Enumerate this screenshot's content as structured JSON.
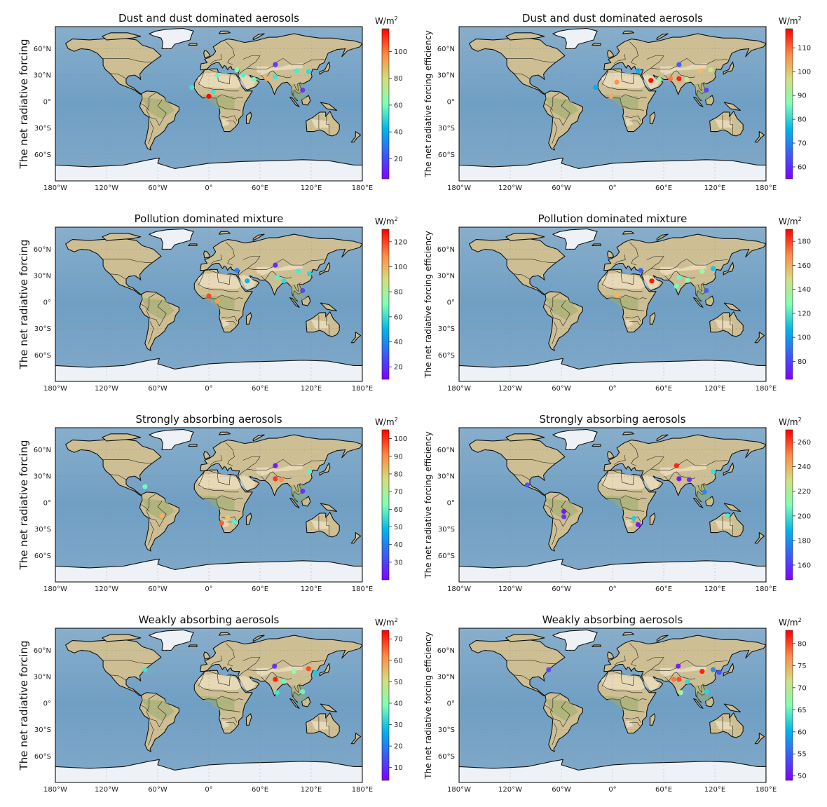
{
  "figure": {
    "longitude_ticks": [
      "180°W",
      "120°W",
      "60°W",
      "0°",
      "60°E",
      "120°E",
      "180°E"
    ],
    "latitude_ticks": [
      "60°N",
      "30°N",
      "0°",
      "30°S",
      "60°S"
    ],
    "colorbar_unit": "W/m",
    "colorbar_unit_superscript": "2",
    "colormap": "rainbow",
    "colors": {
      "ocean": "#7aa6c7",
      "land": "#cdbf93",
      "ice": "#eef2f7",
      "coast": "#111111",
      "desert": "#efe0c2"
    }
  },
  "panels": [
    {
      "title": "Dust and dust dominated aerosols",
      "ylabel": "The net radiative forcing",
      "colorbar_ticks": [
        20,
        40,
        60,
        80,
        100
      ],
      "vmin": 5,
      "vmax": 117,
      "points": [
        {
          "lon": 78,
          "lat": 42,
          "v": 12
        },
        {
          "lon": 33,
          "lat": 36,
          "v": 62
        },
        {
          "lon": 40,
          "lat": 30,
          "v": 50
        },
        {
          "lon": 68,
          "lat": 26,
          "v": 90
        },
        {
          "lon": 78,
          "lat": 28,
          "v": 45
        },
        {
          "lon": 103,
          "lat": 35,
          "v": 48
        },
        {
          "lon": 117,
          "lat": 34,
          "v": 42
        },
        {
          "lon": 110,
          "lat": 13,
          "v": 12
        },
        {
          "lon": 5,
          "lat": 11,
          "v": 45
        },
        {
          "lon": 0,
          "lat": 6,
          "v": 117
        },
        {
          "lon": -20,
          "lat": 16,
          "v": 45
        },
        {
          "lon": 10,
          "lat": 30,
          "v": 55
        },
        {
          "lon": 53,
          "lat": 25,
          "v": 60
        }
      ]
    },
    {
      "title": "Dust and dust dominated aerosols",
      "ylabel": "The net radiative forcing efficiency",
      "colorbar_ticks": [
        60,
        70,
        80,
        90,
        100,
        110
      ],
      "vmin": 55,
      "vmax": 118,
      "points": [
        {
          "lon": 78,
          "lat": 42,
          "v": 62
        },
        {
          "lon": 30,
          "lat": 35,
          "v": 70
        },
        {
          "lon": 45,
          "lat": 24,
          "v": 118
        },
        {
          "lon": 68,
          "lat": 26,
          "v": 108
        },
        {
          "lon": 78,
          "lat": 26,
          "v": 116
        },
        {
          "lon": 103,
          "lat": 35,
          "v": 102
        },
        {
          "lon": 115,
          "lat": 36,
          "v": 95
        },
        {
          "lon": 110,
          "lat": 13,
          "v": 60
        },
        {
          "lon": 5,
          "lat": 22,
          "v": 106
        },
        {
          "lon": -2,
          "lat": 6,
          "v": 104
        },
        {
          "lon": -20,
          "lat": 16,
          "v": 70
        },
        {
          "lon": 55,
          "lat": 25,
          "v": 90
        },
        {
          "lon": 87,
          "lat": 25,
          "v": 95
        }
      ]
    },
    {
      "title": "Pollution dominated mixture",
      "ylabel": "The net radiative forcing",
      "colorbar_ticks": [
        20,
        40,
        60,
        80,
        100,
        120
      ],
      "vmin": 10,
      "vmax": 130,
      "points": [
        {
          "lon": 78,
          "lat": 42,
          "v": 15
        },
        {
          "lon": 33,
          "lat": 36,
          "v": 30
        },
        {
          "lon": 80,
          "lat": 28,
          "v": 60
        },
        {
          "lon": 88,
          "lat": 24,
          "v": 50
        },
        {
          "lon": 105,
          "lat": 35,
          "v": 55
        },
        {
          "lon": 118,
          "lat": 32,
          "v": 48
        },
        {
          "lon": 110,
          "lat": 13,
          "v": 20
        },
        {
          "lon": 0,
          "lat": 7,
          "v": 120
        },
        {
          "lon": 10,
          "lat": 1,
          "v": 105
        },
        {
          "lon": 45,
          "lat": 24,
          "v": 40
        }
      ]
    },
    {
      "title": "Pollution dominated mixture",
      "ylabel": "The net radiative forcing efficiency",
      "colorbar_ticks": [
        80,
        100,
        120,
        140,
        160,
        180
      ],
      "vmin": 65,
      "vmax": 190,
      "points": [
        {
          "lon": 33,
          "lat": 36,
          "v": 80
        },
        {
          "lon": 46,
          "lat": 24,
          "v": 188
        },
        {
          "lon": 78,
          "lat": 28,
          "v": 120
        },
        {
          "lon": 88,
          "lat": 25,
          "v": 130
        },
        {
          "lon": 105,
          "lat": 35,
          "v": 135
        },
        {
          "lon": 118,
          "lat": 38,
          "v": 100
        },
        {
          "lon": 110,
          "lat": 13,
          "v": 80
        },
        {
          "lon": 5,
          "lat": 8,
          "v": 160
        },
        {
          "lon": 75,
          "lat": 18,
          "v": 125
        }
      ]
    },
    {
      "title": "Strongly absorbing aerosols",
      "ylabel": "The net radiative forcing",
      "colorbar_ticks": [
        30,
        40,
        50,
        60,
        70,
        80,
        90,
        100
      ],
      "vmin": 20,
      "vmax": 105,
      "points": [
        {
          "lon": 78,
          "lat": 42,
          "v": 22
        },
        {
          "lon": 78,
          "lat": 27,
          "v": 100
        },
        {
          "lon": 85,
          "lat": 26,
          "v": 90
        },
        {
          "lon": 118,
          "lat": 35,
          "v": 55
        },
        {
          "lon": 110,
          "lat": 13,
          "v": 25
        },
        {
          "lon": -75,
          "lat": 18,
          "v": 60
        },
        {
          "lon": -55,
          "lat": -15,
          "v": 85
        },
        {
          "lon": 15,
          "lat": -23,
          "v": 95
        },
        {
          "lon": 22,
          "lat": -17,
          "v": 80
        },
        {
          "lon": 30,
          "lat": -22,
          "v": 55
        }
      ]
    },
    {
      "title": "Strongly absorbing aerosols",
      "ylabel": "The net radiative forcing efficiency",
      "colorbar_ticks": [
        160,
        180,
        200,
        220,
        240,
        260
      ],
      "vmin": 148,
      "vmax": 270,
      "points": [
        {
          "lon": 75,
          "lat": 42,
          "v": 265
        },
        {
          "lon": 78,
          "lat": 27,
          "v": 150
        },
        {
          "lon": 90,
          "lat": 26,
          "v": 155
        },
        {
          "lon": 118,
          "lat": 35,
          "v": 190
        },
        {
          "lon": 108,
          "lat": 12,
          "v": 170
        },
        {
          "lon": -100,
          "lat": 20,
          "v": 160
        },
        {
          "lon": -57,
          "lat": -10,
          "v": 150
        },
        {
          "lon": -57,
          "lat": -16,
          "v": 155
        },
        {
          "lon": 25,
          "lat": -18,
          "v": 185
        },
        {
          "lon": 30,
          "lat": -25,
          "v": 150
        },
        {
          "lon": 135,
          "lat": -15,
          "v": 195
        }
      ]
    },
    {
      "title": "Weakly absorbing aerosols",
      "ylabel": "The net radiative forcing",
      "colorbar_ticks": [
        10,
        20,
        30,
        40,
        50,
        60,
        70
      ],
      "vmin": 4,
      "vmax": 74,
      "points": [
        {
          "lon": 77,
          "lat": 42,
          "v": 8
        },
        {
          "lon": 78,
          "lat": 27,
          "v": 72
        },
        {
          "lon": 117,
          "lat": 39,
          "v": 68
        },
        {
          "lon": 100,
          "lat": 36,
          "v": 40
        },
        {
          "lon": 125,
          "lat": 35,
          "v": 25
        },
        {
          "lon": 88,
          "lat": 25,
          "v": 35
        },
        {
          "lon": 80,
          "lat": 12,
          "v": 30
        },
        {
          "lon": -75,
          "lat": 38,
          "v": 30
        },
        {
          "lon": 110,
          "lat": 13,
          "v": 35
        }
      ]
    },
    {
      "title": "Weakly absorbing aerosols",
      "ylabel": "The net radiative forcing efficiency",
      "colorbar_ticks": [
        50,
        55,
        60,
        65,
        70,
        75,
        80
      ],
      "vmin": 49,
      "vmax": 83,
      "points": [
        {
          "lon": 77,
          "lat": 42,
          "v": 50
        },
        {
          "lon": 78,
          "lat": 27,
          "v": 80
        },
        {
          "lon": 72,
          "lat": 27,
          "v": 78
        },
        {
          "lon": 105,
          "lat": 36,
          "v": 82
        },
        {
          "lon": 118,
          "lat": 38,
          "v": 55
        },
        {
          "lon": 125,
          "lat": 35,
          "v": 52
        },
        {
          "lon": 80,
          "lat": 12,
          "v": 68
        },
        {
          "lon": 88,
          "lat": 24,
          "v": 60
        },
        {
          "lon": -75,
          "lat": 38,
          "v": 52
        },
        {
          "lon": 110,
          "lat": 13,
          "v": 60
        }
      ]
    }
  ]
}
